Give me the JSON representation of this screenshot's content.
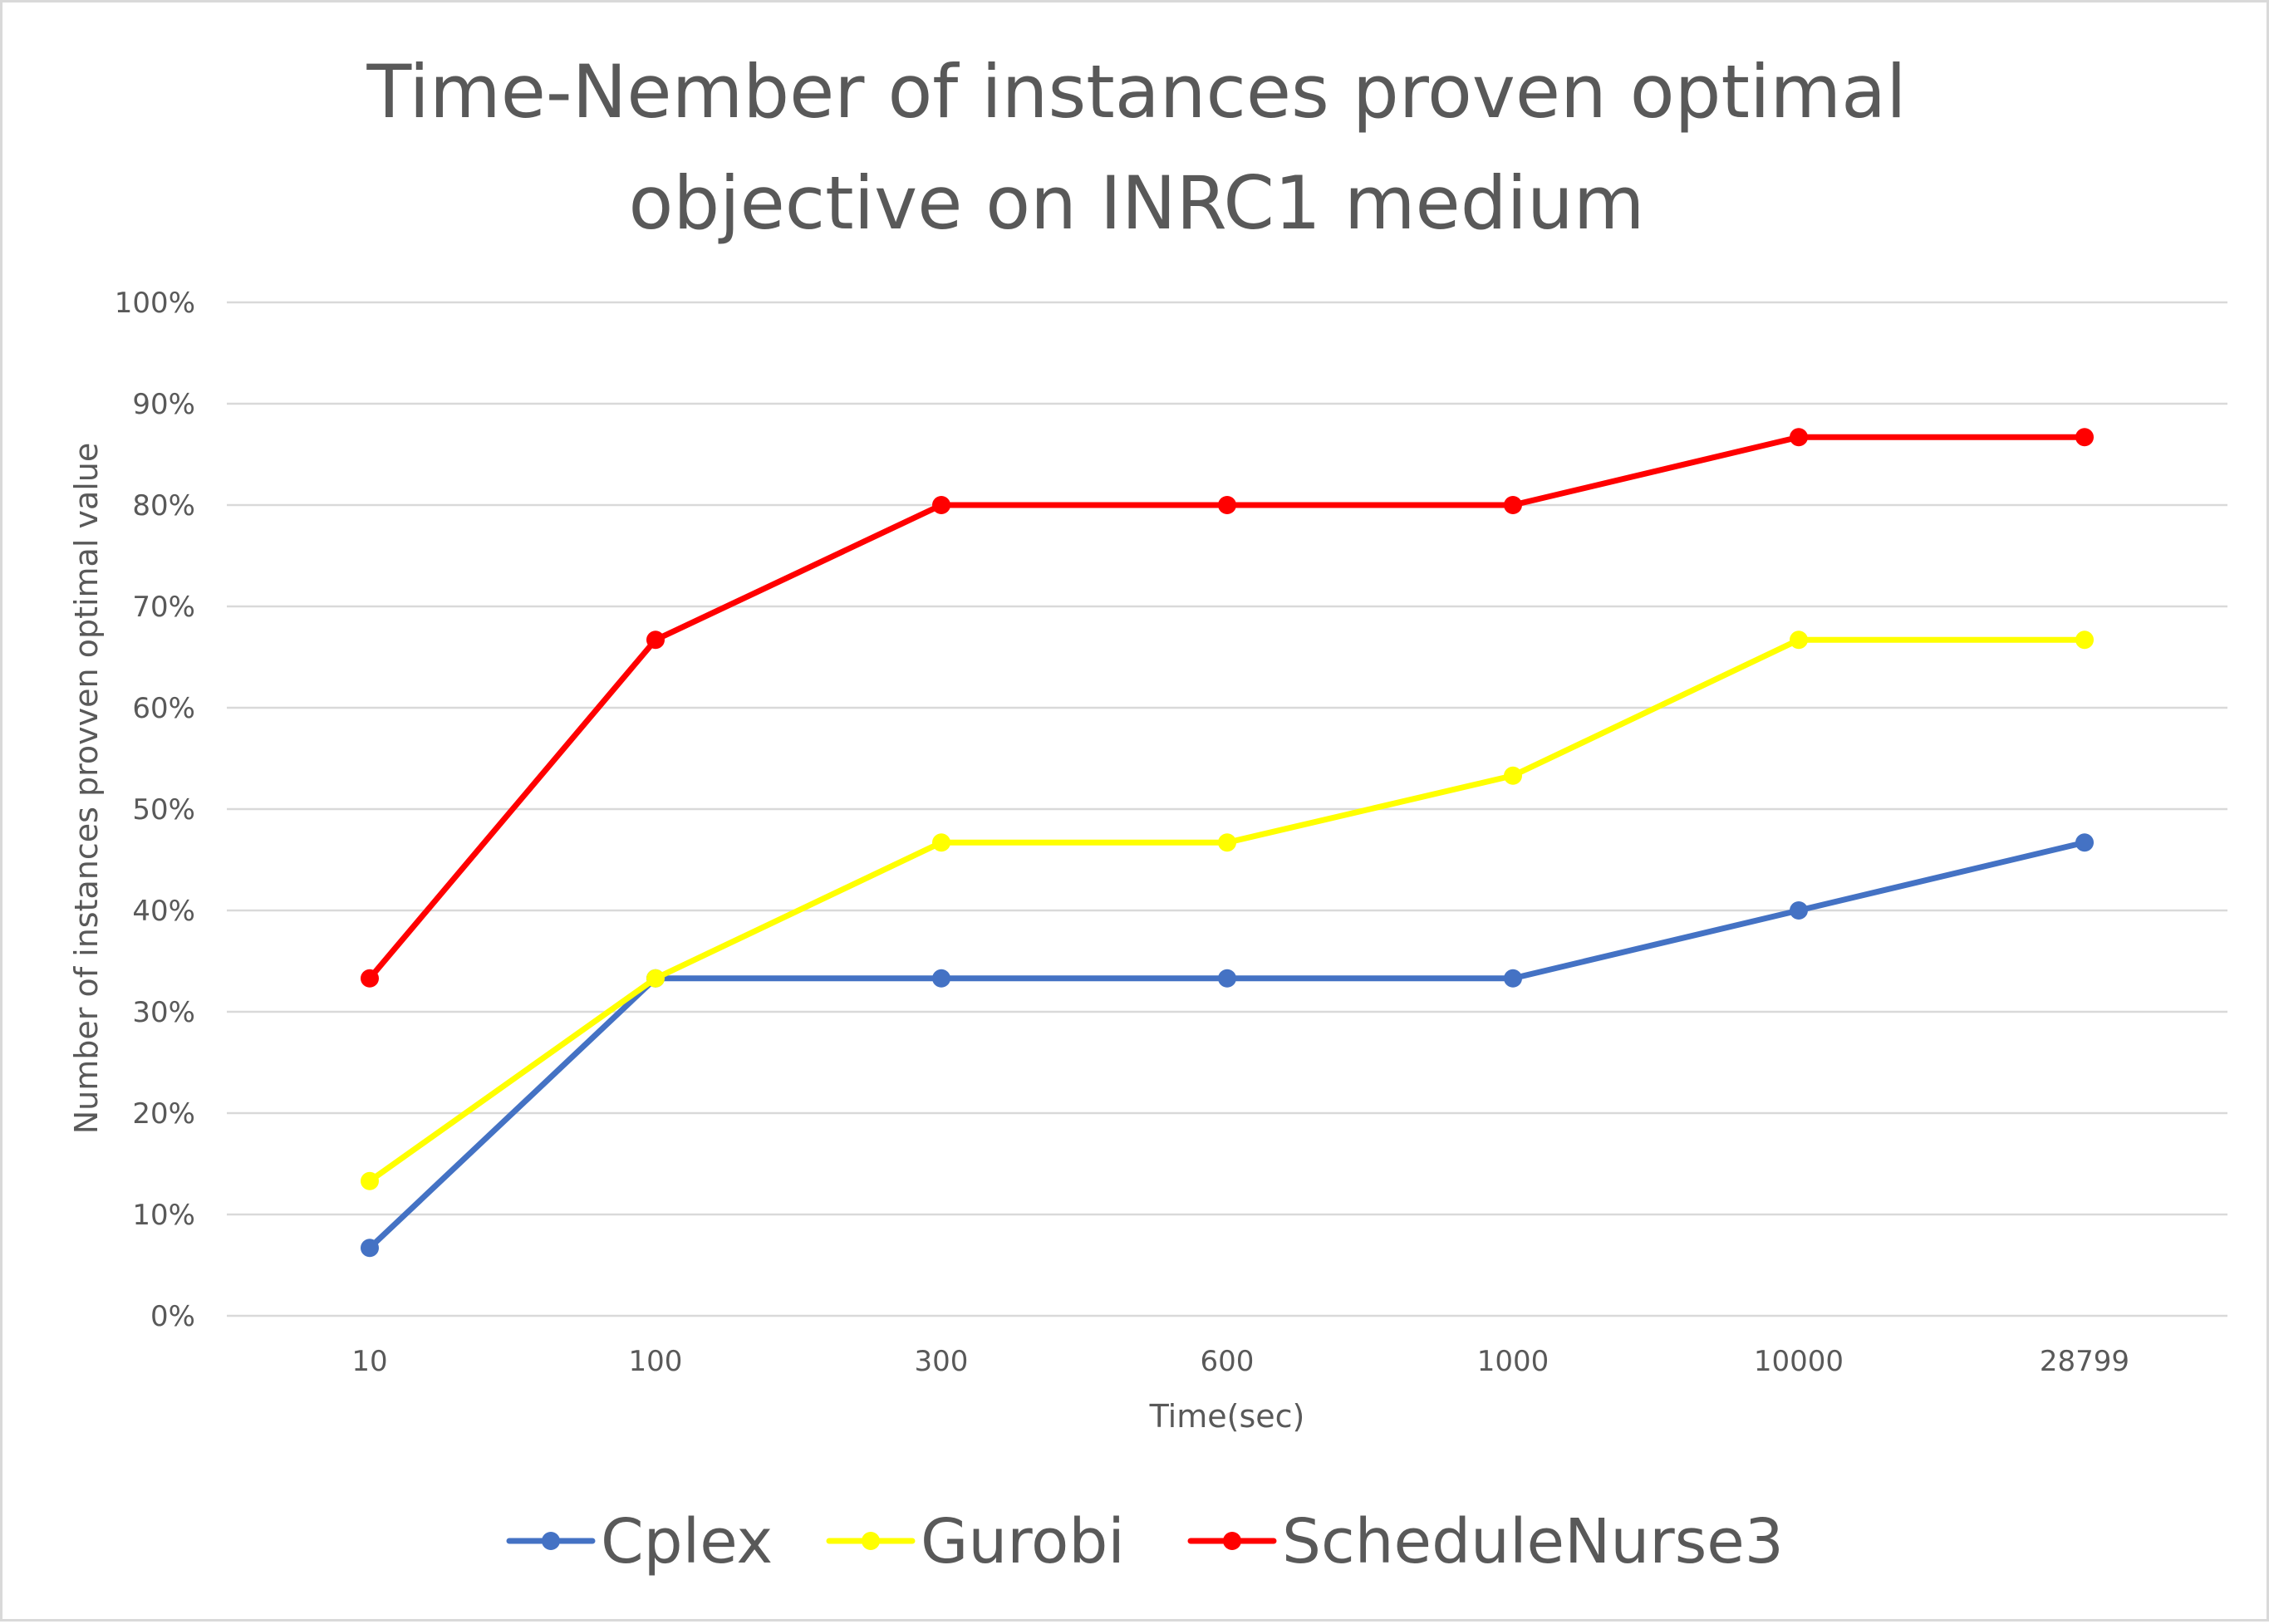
{
  "chart_data": {
    "type": "line",
    "title_lines": [
      "Time-Nember of instances proven optimal",
      "objective on INRC1 medium"
    ],
    "xlabel": "Time(sec)",
    "ylabel": "Number of instances provven optimal value",
    "categories": [
      "10",
      "100",
      "300",
      "600",
      "1000",
      "10000",
      "28799"
    ],
    "ylim": [
      0,
      100
    ],
    "yticks": [
      0,
      10,
      20,
      30,
      40,
      50,
      60,
      70,
      80,
      90,
      100
    ],
    "ytick_labels": [
      "0%",
      "10%",
      "20%",
      "30%",
      "40%",
      "50%",
      "60%",
      "70%",
      "80%",
      "90%",
      "100%"
    ],
    "grid": true,
    "legend_position": "bottom",
    "series": [
      {
        "name": "Cplex",
        "color": "#4472c4",
        "values": [
          6.7,
          33.3,
          33.3,
          33.3,
          33.3,
          40.0,
          46.7
        ]
      },
      {
        "name": "Gurobi",
        "color": "#ffff00",
        "values": [
          13.3,
          33.3,
          46.7,
          46.7,
          53.3,
          66.7,
          66.7
        ]
      },
      {
        "name": "ScheduleNurse3",
        "color": "#ff0000",
        "values": [
          33.3,
          66.7,
          80.0,
          80.0,
          80.0,
          86.7,
          86.7
        ]
      }
    ]
  }
}
